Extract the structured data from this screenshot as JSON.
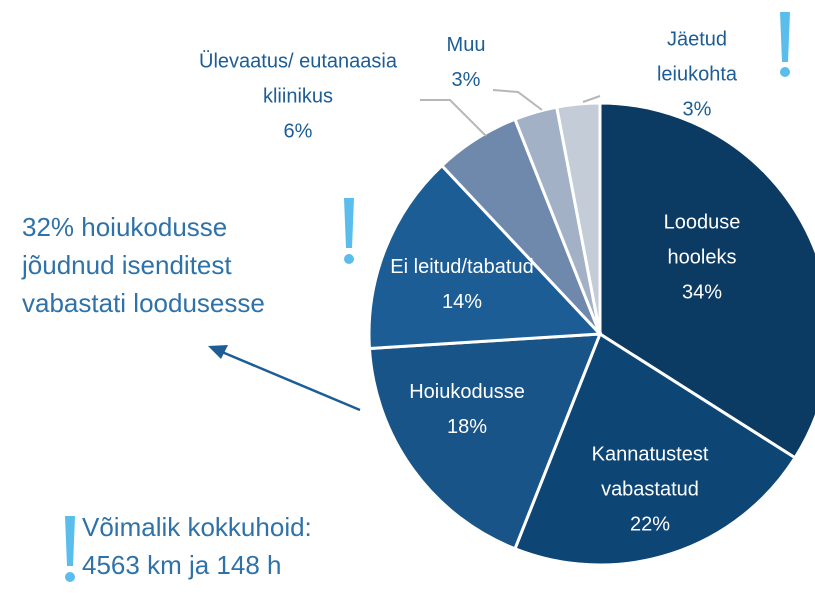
{
  "chart_data": {
    "type": "pie",
    "categories": [
      "Looduse hooleks",
      "Kannatustest vabastatud",
      "Hoiukodusse",
      "Ei leitud/tabatud",
      "Ülevaatus/ eutanaasia kliinikus",
      "Muu",
      "Jäetud leiukohta"
    ],
    "values": [
      34,
      22,
      18,
      14,
      6,
      3,
      3
    ],
    "value_labels": [
      "34%",
      "22%",
      "18%",
      "14%",
      "6%",
      "3%",
      "3%"
    ],
    "colors": [
      "#0b3a63",
      "#0d4675",
      "#195488",
      "#1d5d95",
      "#6f89ad",
      "#a2b1c6",
      "#c4ccd8"
    ],
    "annotations": [
      "32% hoiukodusse jõudnud isenditest vabastati loodusesse",
      "Võimalik kokkuhoid: 4563 km ja 148 h"
    ]
  }
}
